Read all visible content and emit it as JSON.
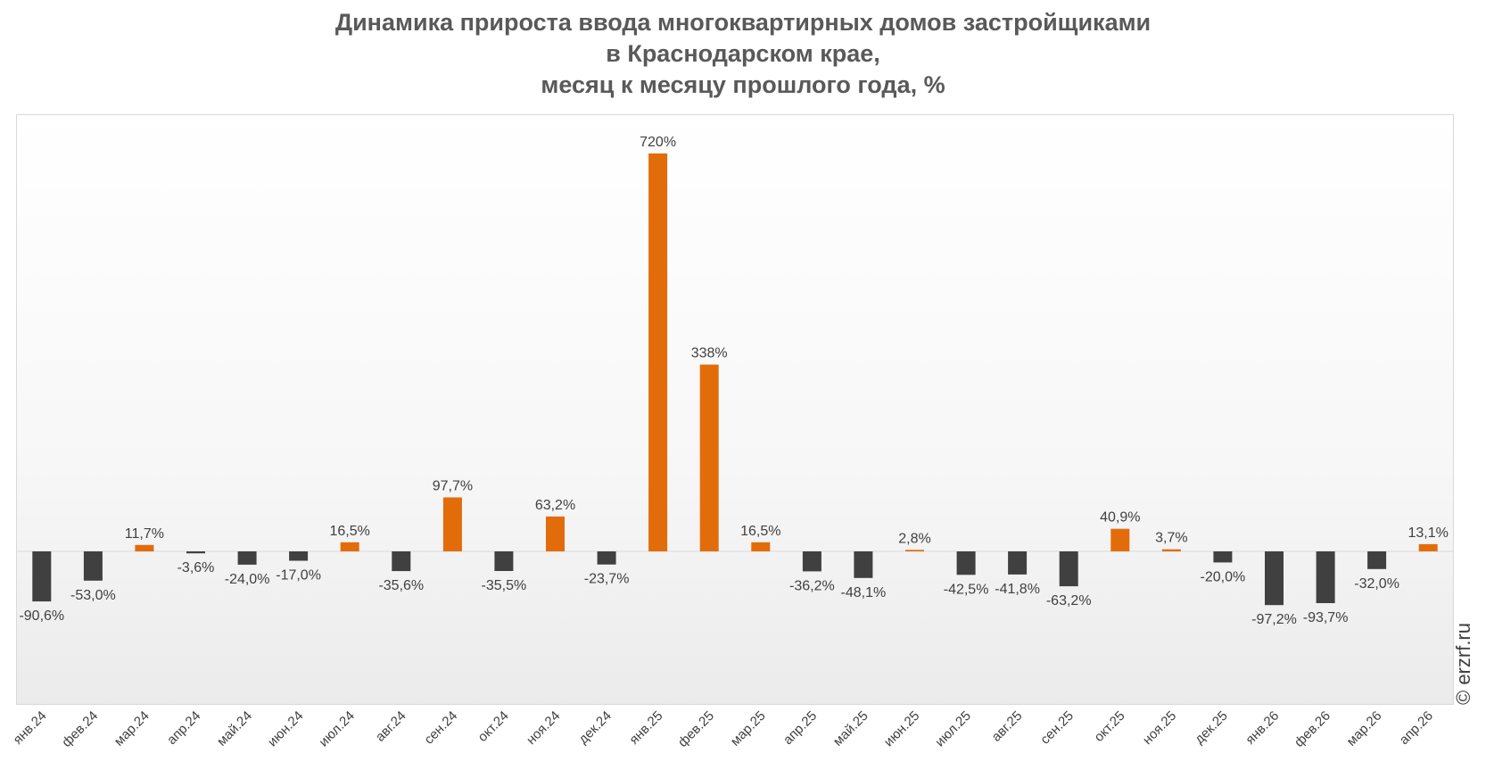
{
  "chart_data": {
    "type": "bar",
    "title_lines": [
      "Динамика прироста ввода многоквартирных домов застройщиками",
      "в Краснодарском крае,",
      "месяц к месяцу прошлого года, %"
    ],
    "categories": [
      "янв.24",
      "фев.24",
      "мар.24",
      "апр.24",
      "май.24",
      "июн.24",
      "июл.24",
      "авг.24",
      "сен.24",
      "окт.24",
      "ноя.24",
      "дек.24",
      "янв.25",
      "фев.25",
      "мар.25",
      "апр.25",
      "май.25",
      "июн.25",
      "июл.25",
      "авг.25",
      "сен.25",
      "окт.25",
      "ноя.25",
      "дек.25",
      "янв.26",
      "фев.26",
      "мар.26",
      "апр.26"
    ],
    "values": [
      -90.6,
      -53.0,
      11.7,
      -3.6,
      -24.0,
      -17.0,
      16.5,
      -35.6,
      97.7,
      -35.5,
      63.2,
      -23.7,
      720,
      338,
      16.5,
      -36.2,
      -48.1,
      2.8,
      -42.5,
      -41.8,
      -63.2,
      40.9,
      3.7,
      -20.0,
      -97.2,
      -93.7,
      -32.0,
      13.1
    ],
    "labels": [
      "-90,6%",
      "-53,0%",
      "11,7%",
      "-3,6%",
      "-24,0%",
      "-17,0%",
      "16,5%",
      "-35,6%",
      "97,7%",
      "-35,5%",
      "63,2%",
      "-23,7%",
      "720%",
      "338%",
      "16,5%",
      "-36,2%",
      "-48,1%",
      "2,8%",
      "-42,5%",
      "-41,8%",
      "-63,2%",
      "40,9%",
      "3,7%",
      "-20,0%",
      "-97,2%",
      "-93,7%",
      "-32,0%",
      "13,1%"
    ],
    "ylim": [
      -200,
      800
    ],
    "grid": false,
    "legend": "none",
    "colors": {
      "positive": "#e36c0a",
      "negative": "#404040",
      "label": "#404040",
      "axis": "#d9d9d9"
    }
  },
  "watermark": "© erzrf.ru"
}
